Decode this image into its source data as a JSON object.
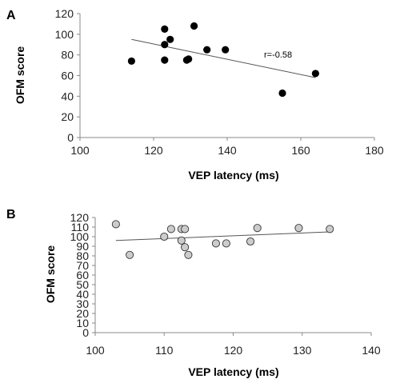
{
  "chart_data": [
    {
      "type": "scatter",
      "panel_label": "A",
      "xlabel": "VEP latency (ms)",
      "ylabel": "OFM score",
      "xlim": [
        100,
        180
      ],
      "ylim": [
        0,
        120
      ],
      "xticks": [
        100,
        120,
        140,
        160,
        180
      ],
      "yticks": [
        0,
        20,
        40,
        60,
        80,
        100,
        120
      ],
      "marker_color": "#000000",
      "annotation": "r=-0.58",
      "points": [
        {
          "x": 114,
          "y": 74
        },
        {
          "x": 123,
          "y": 105
        },
        {
          "x": 123,
          "y": 90
        },
        {
          "x": 123,
          "y": 75
        },
        {
          "x": 124.5,
          "y": 95
        },
        {
          "x": 129,
          "y": 75
        },
        {
          "x": 129.5,
          "y": 76
        },
        {
          "x": 131,
          "y": 108
        },
        {
          "x": 134.5,
          "y": 85
        },
        {
          "x": 139.5,
          "y": 85
        },
        {
          "x": 155,
          "y": 43
        },
        {
          "x": 164,
          "y": 62
        }
      ],
      "trendline": {
        "x": [
          114,
          164
        ],
        "y": [
          95,
          58
        ]
      },
      "grid": false
    },
    {
      "type": "scatter",
      "panel_label": "B",
      "xlabel": "VEP latency (ms)",
      "ylabel": "OFM score",
      "xlim": [
        100,
        140
      ],
      "ylim": [
        0,
        120
      ],
      "xticks": [
        100,
        110,
        120,
        130,
        140
      ],
      "yticks": [
        0,
        10,
        20,
        30,
        40,
        50,
        60,
        70,
        80,
        90,
        100,
        110,
        120
      ],
      "marker_color": "#cccccc",
      "points": [
        {
          "x": 103,
          "y": 113
        },
        {
          "x": 105,
          "y": 81
        },
        {
          "x": 110,
          "y": 100
        },
        {
          "x": 111,
          "y": 108
        },
        {
          "x": 112.5,
          "y": 108
        },
        {
          "x": 113,
          "y": 108
        },
        {
          "x": 112.5,
          "y": 96
        },
        {
          "x": 113,
          "y": 89
        },
        {
          "x": 113.5,
          "y": 81
        },
        {
          "x": 117.5,
          "y": 93
        },
        {
          "x": 119,
          "y": 93
        },
        {
          "x": 122.5,
          "y": 95
        },
        {
          "x": 123.5,
          "y": 109
        },
        {
          "x": 129.5,
          "y": 109
        },
        {
          "x": 134,
          "y": 108
        }
      ],
      "trendline": {
        "x": [
          103,
          134
        ],
        "y": [
          96,
          105
        ]
      },
      "grid": false
    }
  ]
}
